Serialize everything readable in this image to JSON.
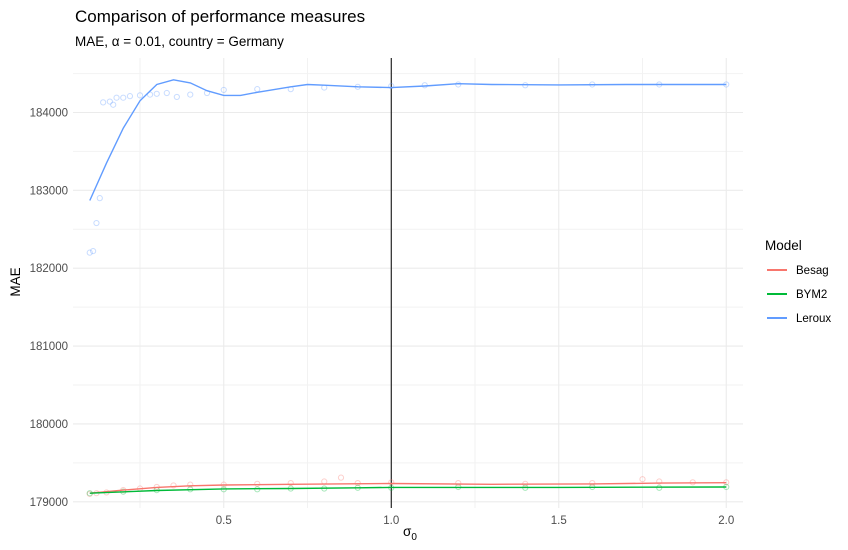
{
  "chart_data": {
    "type": "scatter",
    "title": "Comparison of performance measures",
    "subtitle": "MAE, α = 0.01, country = Germany",
    "xlabel": "σ",
    "xlabel_sub": "0",
    "ylabel": "MAE",
    "xlim": [
      0.05,
      2.05
    ],
    "ylim": [
      178920,
      184700
    ],
    "x_ticks": [
      0.5,
      1.0,
      1.5,
      2.0
    ],
    "x_tick_labels": [
      "0.5",
      "1.0",
      "1.5",
      "2.0"
    ],
    "y_ticks": [
      179000,
      180000,
      181000,
      182000,
      183000,
      184000
    ],
    "y_tick_labels": [
      "179000",
      "180000",
      "181000",
      "182000",
      "183000",
      "184000"
    ],
    "vline_x": 1.0,
    "grid": true,
    "legend": {
      "title": "Model",
      "position": "right"
    },
    "series": [
      {
        "name": "Besag",
        "color": "#F8766D",
        "smooth": [
          [
            0.1,
            179110
          ],
          [
            0.2,
            179150
          ],
          [
            0.3,
            179185
          ],
          [
            0.4,
            179205
          ],
          [
            0.5,
            179215
          ],
          [
            0.7,
            179225
          ],
          [
            1.0,
            179235
          ],
          [
            1.3,
            179225
          ],
          [
            1.6,
            179230
          ],
          [
            1.8,
            179240
          ],
          [
            2.0,
            179245
          ]
        ],
        "points": [
          [
            0.1,
            179100
          ],
          [
            0.12,
            179110
          ],
          [
            0.15,
            179120
          ],
          [
            0.2,
            179150
          ],
          [
            0.25,
            179170
          ],
          [
            0.3,
            179190
          ],
          [
            0.35,
            179210
          ],
          [
            0.4,
            179220
          ],
          [
            0.5,
            179220
          ],
          [
            0.6,
            179230
          ],
          [
            0.7,
            179240
          ],
          [
            0.8,
            179260
          ],
          [
            0.85,
            179310
          ],
          [
            0.9,
            179240
          ],
          [
            1.0,
            179250
          ],
          [
            1.2,
            179240
          ],
          [
            1.4,
            179230
          ],
          [
            1.6,
            179240
          ],
          [
            1.75,
            179290
          ],
          [
            1.8,
            179260
          ],
          [
            1.9,
            179250
          ],
          [
            2.0,
            179250
          ]
        ]
      },
      {
        "name": "BYM2",
        "color": "#00BA38",
        "smooth": [
          [
            0.1,
            179110
          ],
          [
            0.3,
            179145
          ],
          [
            0.5,
            179165
          ],
          [
            0.7,
            179170
          ],
          [
            0.9,
            179180
          ],
          [
            1.0,
            179185
          ],
          [
            1.5,
            179185
          ],
          [
            2.0,
            179190
          ]
        ],
        "points": [
          [
            0.1,
            179110
          ],
          [
            0.2,
            179130
          ],
          [
            0.3,
            179150
          ],
          [
            0.4,
            179160
          ],
          [
            0.5,
            179160
          ],
          [
            0.6,
            179160
          ],
          [
            0.7,
            179170
          ],
          [
            0.8,
            179170
          ],
          [
            0.9,
            179180
          ],
          [
            1.0,
            179180
          ],
          [
            1.2,
            179190
          ],
          [
            1.4,
            179180
          ],
          [
            1.6,
            179190
          ],
          [
            1.8,
            179180
          ],
          [
            2.0,
            179190
          ]
        ]
      },
      {
        "name": "Leroux",
        "color": "#619CFF",
        "smooth": [
          [
            0.1,
            182870
          ],
          [
            0.15,
            183350
          ],
          [
            0.2,
            183800
          ],
          [
            0.25,
            184150
          ],
          [
            0.3,
            184360
          ],
          [
            0.35,
            184420
          ],
          [
            0.4,
            184380
          ],
          [
            0.45,
            184280
          ],
          [
            0.5,
            184220
          ],
          [
            0.55,
            184220
          ],
          [
            0.6,
            184260
          ],
          [
            0.7,
            184330
          ],
          [
            0.75,
            184360
          ],
          [
            0.8,
            184350
          ],
          [
            0.9,
            184330
          ],
          [
            1.0,
            184320
          ],
          [
            1.1,
            184340
          ],
          [
            1.2,
            184370
          ],
          [
            1.3,
            184360
          ],
          [
            1.5,
            184355
          ],
          [
            1.7,
            184360
          ],
          [
            2.0,
            184360
          ]
        ],
        "points": [
          [
            0.1,
            182200
          ],
          [
            0.11,
            182220
          ],
          [
            0.12,
            182580
          ],
          [
            0.13,
            182900
          ],
          [
            0.14,
            184130
          ],
          [
            0.16,
            184140
          ],
          [
            0.17,
            184100
          ],
          [
            0.18,
            184190
          ],
          [
            0.2,
            184190
          ],
          [
            0.22,
            184210
          ],
          [
            0.25,
            184220
          ],
          [
            0.28,
            184230
          ],
          [
            0.3,
            184240
          ],
          [
            0.33,
            184250
          ],
          [
            0.36,
            184200
          ],
          [
            0.4,
            184230
          ],
          [
            0.45,
            184250
          ],
          [
            0.5,
            184290
          ],
          [
            0.6,
            184300
          ],
          [
            0.7,
            184300
          ],
          [
            0.8,
            184320
          ],
          [
            0.9,
            184330
          ],
          [
            1.0,
            184340
          ],
          [
            1.1,
            184350
          ],
          [
            1.2,
            184360
          ],
          [
            1.4,
            184350
          ],
          [
            1.6,
            184360
          ],
          [
            1.8,
            184360
          ],
          [
            2.0,
            184360
          ]
        ]
      }
    ]
  }
}
